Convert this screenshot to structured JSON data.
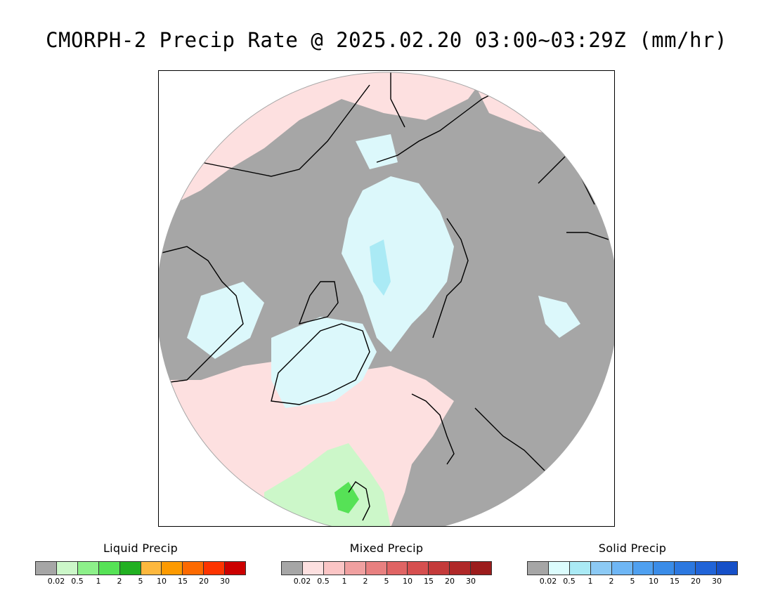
{
  "title": "CMORPH-2 Precip Rate @ 2025.02.20 03:00~03:29Z (mm/hr)",
  "colors": {
    "land_no_precip": "#a6a6a6",
    "liquid_light": "#ccf7c9",
    "mixed_light": "#fde0e0",
    "solid_light": "#dcf8fb",
    "solid_medium": "#aaeaf5",
    "mixed_medium": "#f0a0a0",
    "liquid_medium": "#56e256",
    "coastline": "#000000"
  },
  "legends": [
    {
      "id": "liquid",
      "title": "Liquid Precip",
      "colors": [
        "#a6a6a6",
        "#ccf7c9",
        "#8df08a",
        "#56e256",
        "#21b021",
        "#fdb83e",
        "#fd9a00",
        "#fd6a00",
        "#fd3400",
        "#cc0000"
      ],
      "ticks": [
        "0.02",
        "0.5",
        "1",
        "2",
        "5",
        "10",
        "15",
        "20",
        "30"
      ]
    },
    {
      "id": "mixed",
      "title": "Mixed Precip",
      "colors": [
        "#a6a6a6",
        "#fde0e0",
        "#fbc5c5",
        "#f0a0a0",
        "#e88080",
        "#e06464",
        "#d64f4f",
        "#c43a3a",
        "#b02828",
        "#9c1c1c"
      ],
      "ticks": [
        "0.02",
        "0.5",
        "1",
        "2",
        "5",
        "10",
        "15",
        "20",
        "30"
      ]
    },
    {
      "id": "solid",
      "title": "Solid Precip",
      "colors": [
        "#a6a6a6",
        "#dcfcfd",
        "#aaeaf5",
        "#8ccaf5",
        "#6eb6f5",
        "#4fa0f0",
        "#3a8ce8",
        "#2c78e0",
        "#2164d8",
        "#1650c8"
      ],
      "ticks": [
        "0.02",
        "0.5",
        "1",
        "2",
        "5",
        "10",
        "15",
        "20",
        "30"
      ]
    }
  ]
}
